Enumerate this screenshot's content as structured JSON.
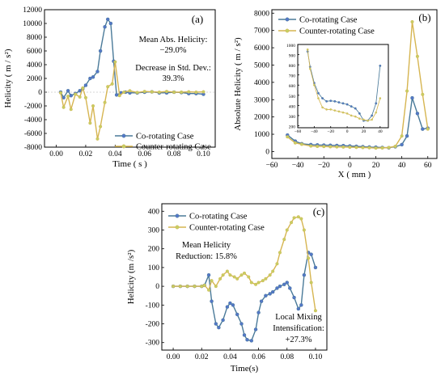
{
  "colors": {
    "co": "#4a7a99",
    "counter": "#d6b551",
    "co_marker": "#5477c8",
    "counter_marker": "#c5cf64"
  },
  "chart_data": [
    {
      "id": "a",
      "type": "line",
      "panel_label": "(a)",
      "xlabel": "Time ( s )",
      "ylabel": "Helicity ( m / s²)",
      "xlim": [
        -0.008,
        0.108
      ],
      "ylim": [
        -8000,
        12000
      ],
      "xticks": [
        "0.00",
        "0.02",
        "0.04",
        "0.06",
        "0.08",
        "0.10"
      ],
      "xtick_values": [
        0,
        0.02,
        0.04,
        0.06,
        0.08,
        0.1
      ],
      "yticks": [
        "-8000",
        "-6000",
        "-4000",
        "-2000",
        "0",
        "2000",
        "4000",
        "6000",
        "8000",
        "10000",
        "12000"
      ],
      "ytick_values": [
        -8000,
        -6000,
        -4000,
        -2000,
        0,
        2000,
        4000,
        6000,
        8000,
        10000,
        12000
      ],
      "annotations": [
        "Mean Abs. Helicity:",
        "−29.0%",
        "Decrease in Std. Dev.:",
        "39.3%"
      ],
      "legend": [
        "Co-rotating Case",
        "Counter-rotating Case"
      ],
      "series": [
        {
          "name": "Co-rotating Case",
          "x": [
            0.003,
            0.005,
            0.008,
            0.01,
            0.013,
            0.016,
            0.018,
            0.02,
            0.023,
            0.025,
            0.028,
            0.03,
            0.033,
            0.035,
            0.037,
            0.039,
            0.041,
            0.044,
            0.047,
            0.05,
            0.055,
            0.06,
            0.065,
            0.07,
            0.075,
            0.08,
            0.085,
            0.09,
            0.095,
            0.1
          ],
          "y": [
            0,
            -800,
            200,
            -500,
            -200,
            200,
            500,
            1000,
            2000,
            2200,
            3000,
            6000,
            9500,
            10600,
            10000,
            4500,
            -400,
            -100,
            0,
            -100,
            -100,
            0,
            50,
            -100,
            -100,
            0,
            -50,
            -200,
            -200,
            -300
          ]
        },
        {
          "name": "Counter-rotating Case",
          "x": [
            0.003,
            0.005,
            0.008,
            0.01,
            0.013,
            0.016,
            0.018,
            0.02,
            0.023,
            0.025,
            0.028,
            0.03,
            0.033,
            0.035,
            0.038,
            0.04,
            0.043,
            0.046,
            0.05,
            0.055,
            0.06,
            0.065,
            0.07,
            0.075,
            0.08,
            0.085,
            0.09,
            0.095,
            0.1
          ],
          "y": [
            -100,
            -2200,
            -600,
            -2500,
            -300,
            -700,
            600,
            -800,
            -4500,
            -2000,
            -6800,
            -5000,
            -1500,
            800,
            1200,
            4400,
            -500,
            0,
            200,
            -50,
            100,
            50,
            0,
            100,
            0,
            0,
            50,
            0,
            50
          ]
        }
      ]
    },
    {
      "id": "b",
      "type": "line",
      "panel_label": "(b)",
      "xlabel": "X ( mm )",
      "ylabel": "Absolute Helicity ( m / s²)",
      "xlim": [
        -60,
        67
      ],
      "ylim": [
        -400,
        8200
      ],
      "xticks": [
        "−60",
        "−40",
        "−20",
        "0",
        "20",
        "40",
        "60"
      ],
      "xtick_values": [
        -60,
        -40,
        -20,
        0,
        20,
        40,
        60
      ],
      "yticks": [
        "0",
        "1000",
        "2000",
        "3000",
        "4000",
        "5000",
        "6000",
        "7000",
        "8000"
      ],
      "ytick_values": [
        0,
        1000,
        2000,
        3000,
        4000,
        5000,
        6000,
        7000,
        8000
      ],
      "legend": [
        "Co-rotating Case",
        "Counter-rotating Case"
      ],
      "series": [
        {
          "name": "Co-rotating Case",
          "x": [
            -48,
            -42,
            -37,
            -30,
            -25,
            -20,
            -15,
            -10,
            -5,
            0,
            5,
            10,
            15,
            20,
            25,
            30,
            35,
            40,
            44,
            48,
            52,
            56,
            60
          ],
          "y": [
            950,
            600,
            450,
            400,
            380,
            370,
            360,
            350,
            340,
            320,
            300,
            280,
            260,
            250,
            230,
            220,
            280,
            400,
            900,
            3100,
            2200,
            1300,
            1350
          ]
        },
        {
          "name": "Counter-rotating Case",
          "x": [
            -48,
            -42,
            -37,
            -30,
            -25,
            -20,
            -15,
            -10,
            -5,
            0,
            5,
            10,
            15,
            20,
            25,
            30,
            35,
            40,
            44,
            48,
            52,
            56,
            60
          ],
          "y": [
            850,
            500,
            420,
            320,
            300,
            290,
            280,
            270,
            260,
            250,
            240,
            230,
            220,
            200,
            210,
            230,
            300,
            900,
            3500,
            7500,
            5500,
            3300,
            1300
          ]
        }
      ],
      "inset": {
        "xlim": [
          -60,
          50
        ],
        "ylim": [
          180,
          1000
        ],
        "xticks": [
          "−60",
          "−40",
          "−20",
          "0",
          "20",
          "40"
        ],
        "xtick_values": [
          -60,
          -40,
          -20,
          0,
          20,
          40
        ],
        "yticks": [
          "200",
          "300",
          "400",
          "500",
          "600",
          "700",
          "800",
          "900",
          "1000"
        ],
        "ytick_values": [
          200,
          300,
          400,
          500,
          600,
          700,
          800,
          900,
          1000
        ],
        "series": [
          {
            "name": "Co-rotating Case",
            "x": [
              -48,
              -45,
              -40,
              -35,
              -30,
              -25,
              -20,
              -15,
              -10,
              -5,
              0,
              5,
              10,
              15,
              20,
              25,
              30,
              35,
              40
            ],
            "y": [
              930,
              780,
              620,
              520,
              470,
              440,
              445,
              440,
              430,
              420,
              410,
              390,
              370,
              320,
              250,
              250,
              300,
              420,
              790
            ]
          },
          {
            "name": "Counter-rotating Case",
            "x": [
              -48,
              -45,
              -40,
              -35,
              -30,
              -25,
              -20,
              -15,
              -10,
              -5,
              0,
              5,
              10,
              15,
              20,
              25,
              30,
              35,
              40
            ],
            "y": [
              950,
              760,
              600,
              470,
              380,
              360,
              360,
              350,
              340,
              330,
              320,
              300,
              290,
              270,
              260,
              250,
              260,
              330,
              470
            ]
          }
        ]
      }
    },
    {
      "id": "c",
      "type": "line",
      "panel_label": "(c)",
      "xlabel": "Time(s)",
      "ylabel": "Helicity (m /s²)",
      "xlim": [
        -0.008,
        0.108
      ],
      "ylim": [
        -340,
        440
      ],
      "xticks": [
        "0.00",
        "0.02",
        "0.04",
        "0.06",
        "0.08",
        "0.10"
      ],
      "xtick_values": [
        0,
        0.02,
        0.04,
        0.06,
        0.08,
        0.1
      ],
      "yticks": [
        "-300",
        "-200",
        "-100",
        "0",
        "100",
        "200",
        "300",
        "400"
      ],
      "ytick_values": [
        -300,
        -200,
        -100,
        0,
        100,
        200,
        300,
        400
      ],
      "annotations": [
        "Mean Helicity",
        "Reduction: 15.8%",
        "Local Mixing",
        "Intensification:",
        "+27.3%"
      ],
      "legend": [
        "Co-rotating Case",
        "Counter-rotating Case"
      ],
      "series": [
        {
          "name": "Co-rotating Case",
          "x": [
            0.0,
            0.005,
            0.01,
            0.015,
            0.02,
            0.022,
            0.025,
            0.027,
            0.03,
            0.032,
            0.035,
            0.038,
            0.04,
            0.042,
            0.045,
            0.048,
            0.05,
            0.052,
            0.055,
            0.058,
            0.06,
            0.062,
            0.065,
            0.068,
            0.07,
            0.073,
            0.075,
            0.078,
            0.08,
            0.082,
            0.085,
            0.088,
            0.09,
            0.092,
            0.095,
            0.097,
            0.1
          ],
          "y": [
            0,
            0,
            0,
            0,
            0,
            5,
            60,
            -80,
            -200,
            -220,
            -180,
            -110,
            -90,
            -100,
            -150,
            -200,
            -260,
            -285,
            -290,
            -230,
            -140,
            -80,
            -50,
            -40,
            -30,
            -10,
            0,
            10,
            20,
            -10,
            -60,
            -120,
            -100,
            60,
            180,
            170,
            100
          ]
        },
        {
          "name": "Counter-rotating Case",
          "x": [
            0.0,
            0.005,
            0.01,
            0.015,
            0.02,
            0.022,
            0.025,
            0.027,
            0.03,
            0.033,
            0.035,
            0.038,
            0.04,
            0.043,
            0.045,
            0.048,
            0.05,
            0.053,
            0.055,
            0.058,
            0.06,
            0.063,
            0.065,
            0.068,
            0.07,
            0.073,
            0.075,
            0.078,
            0.08,
            0.083,
            0.085,
            0.088,
            0.09,
            0.092,
            0.095,
            0.097,
            0.1
          ],
          "y": [
            0,
            0,
            0,
            0,
            0,
            5,
            -20,
            30,
            0,
            40,
            60,
            80,
            60,
            50,
            40,
            60,
            70,
            50,
            20,
            10,
            20,
            30,
            40,
            60,
            80,
            120,
            180,
            250,
            300,
            340,
            365,
            370,
            360,
            300,
            150,
            20,
            -130
          ]
        }
      ]
    }
  ]
}
